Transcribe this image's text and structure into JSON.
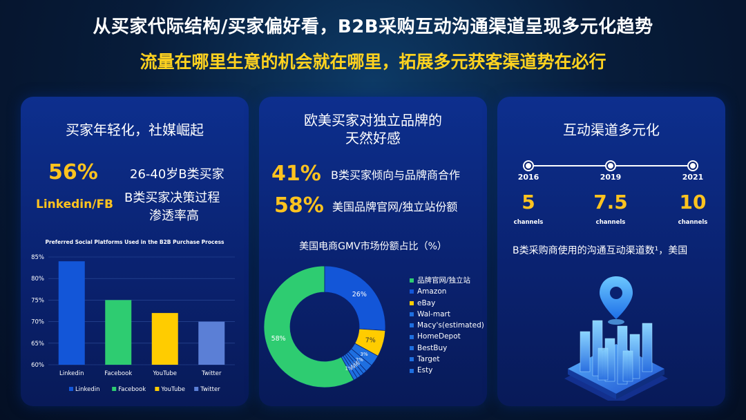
{
  "header": {
    "title": "从买家代际结构/买家偏好看，B2B采购互动沟通渠道呈现多元化趋势",
    "subtitle": "流量在哪里生意的机会就在哪里，拓展多元获客渠道势在必行"
  },
  "panel1": {
    "title": "买家年轻化，社媒崛起",
    "stat1_value": "56%",
    "stat1_text": "26-40岁B类买家",
    "stat2_value": "Linkedin/FB",
    "stat2_text_line1": "B类买家决策过程",
    "stat2_text_line2": "渗透率高"
  },
  "panel2": {
    "title_line1": "欧美买家对独立品牌的",
    "title_line2": "天然好感",
    "stat1_value": "41%",
    "stat1_text": "B类买家倾向与品牌商合作",
    "stat2_value": "58%",
    "stat2_text": "美国品牌官网/独立站份额"
  },
  "panel3": {
    "title": "互动渠道多元化",
    "timeline": [
      {
        "year": "2016",
        "value": "5",
        "unit": "channels"
      },
      {
        "year": "2019",
        "value": "7.5",
        "unit": "channels"
      },
      {
        "year": "2021",
        "value": "10",
        "unit": "channels"
      }
    ],
    "note": "B类采购商使用的沟通互动渠道数¹，美国"
  },
  "colors": {
    "accent_yellow": "#ffc31f",
    "panel_blue": "#0d2f8e",
    "linkedin": "#1356d8",
    "facebook": "#2ecc71",
    "youtube": "#ffcc00",
    "twitter": "#5b7fd6"
  },
  "chart_data": [
    {
      "type": "bar",
      "title": "Preferred Social Platforms Used in the B2B Purchase Process",
      "categories": [
        "Linkedin",
        "Facebook",
        "YouTube",
        "Twitter"
      ],
      "values": [
        84,
        75,
        72,
        70
      ],
      "colors": [
        "#1356d8",
        "#2ecc71",
        "#ffcc00",
        "#5b7fd6"
      ],
      "ylim": [
        60,
        85
      ],
      "yticks": [
        "60%",
        "65%",
        "70%",
        "75%",
        "80%",
        "85%"
      ],
      "legend": [
        "Linkedin",
        "Facebook",
        "YouTube",
        "Twitter"
      ],
      "legend_position": "bottom",
      "grid": true
    },
    {
      "type": "pie",
      "title": "美国电商GMV市场份额占比（%）",
      "categories": [
        "品牌官网/独立站",
        "Amazon",
        "eBay",
        "Wal-mart",
        "Macy's(estimated)",
        "HomeDepot",
        "BestBuy",
        "Target",
        "Esty"
      ],
      "values": [
        58,
        26,
        7,
        3,
        2,
        1,
        1,
        1,
        1
      ],
      "labels": [
        "58%",
        "26%",
        "7%",
        "3%",
        "2%",
        "1%",
        "1%",
        "1%",
        "1%"
      ],
      "colors": [
        "#2ecc71",
        "#1356d8",
        "#ffcc00",
        "#1e6fe0",
        "#1e6fe0",
        "#1e6fe0",
        "#1e6fe0",
        "#1e6fe0",
        "#1e6fe0"
      ],
      "legend_position": "right"
    }
  ]
}
